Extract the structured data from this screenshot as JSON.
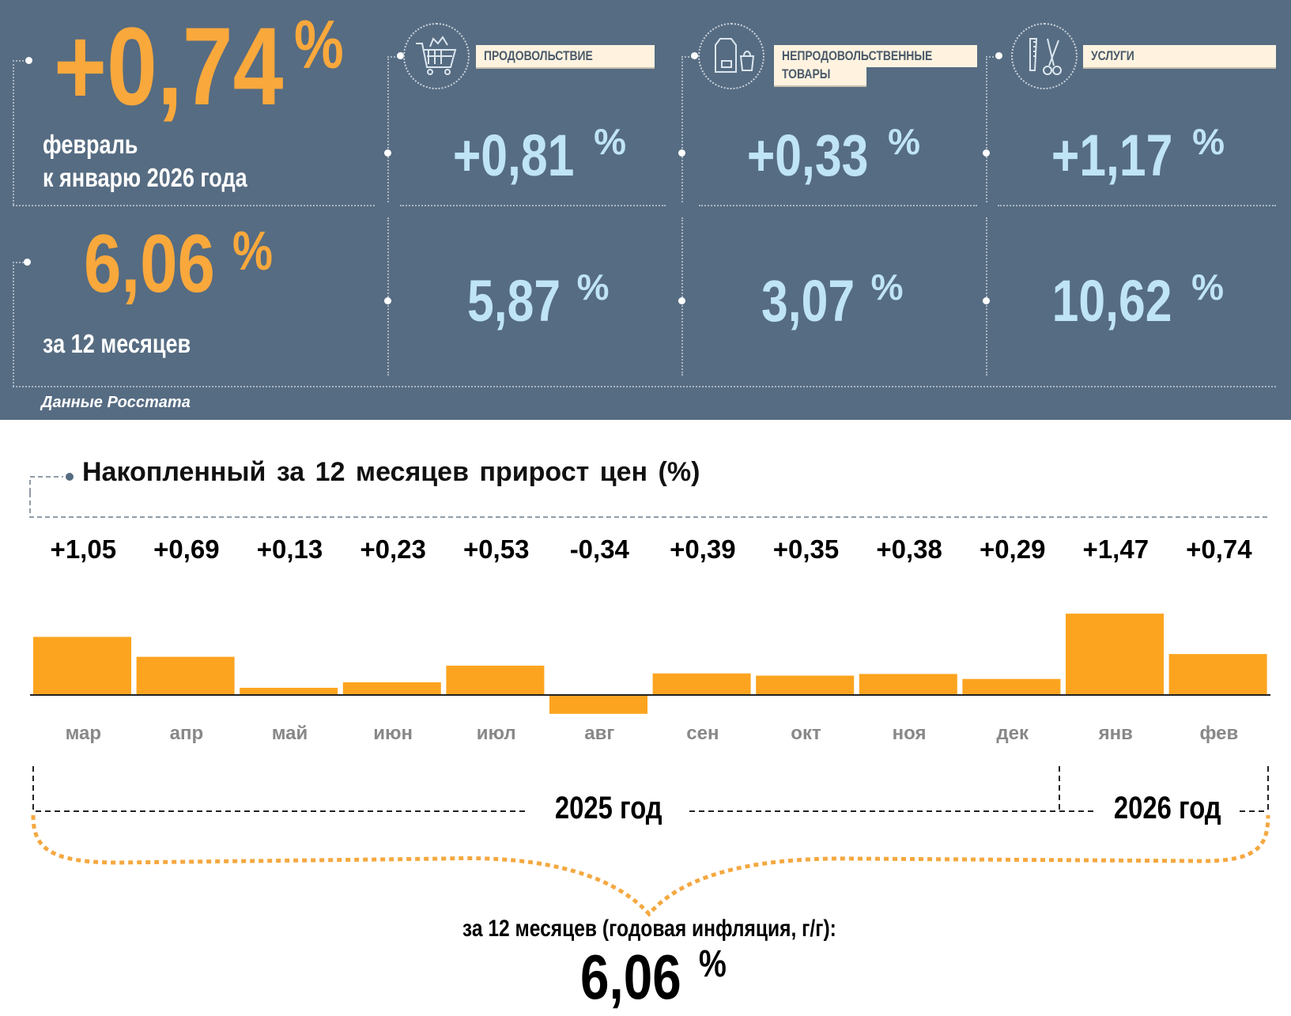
{
  "top": {
    "monthly": {
      "value": "+0,74",
      "pct": "%",
      "line1": "февраль",
      "line2": "к январю 2026 года"
    },
    "annual": {
      "value": "6,06",
      "pct": "%",
      "label": "за 12 месяцев"
    },
    "source": "Данные Росстата",
    "categories": [
      {
        "name": "ПРОДОВОЛЬСТВИЕ",
        "icon": "shopping-cart-icon",
        "monthly": "+0,81",
        "annual": "5,87"
      },
      {
        "name_line1": "НЕПРОДОВОЛЬСТВЕННЫЕ",
        "name_line2": "ТОВАРЫ",
        "icon": "clothes-bag-icon",
        "monthly": "+0,33",
        "annual": "3,07"
      },
      {
        "name": "УСЛУГИ",
        "icon": "comb-scissors-icon",
        "monthly": "+1,17",
        "annual": "10,62"
      }
    ],
    "pct": "%"
  },
  "colors": {
    "panel": "#566c82",
    "accent": "#f9a83c",
    "value_blue": "#bfe4f5",
    "bar": "#fca41f",
    "label_bg": "#fff3e0"
  },
  "chart_data": {
    "type": "bar",
    "title": "Накопленный за 12 месяцев прирост цен (%)",
    "categories": [
      "мар",
      "апр",
      "май",
      "июн",
      "июл",
      "авг",
      "сен",
      "окт",
      "ноя",
      "дек",
      "янв",
      "фев"
    ],
    "values": [
      1.05,
      0.69,
      0.13,
      0.23,
      0.53,
      -0.34,
      0.39,
      0.35,
      0.38,
      0.29,
      1.47,
      0.74
    ],
    "data_labels": [
      "+1,05",
      "+0,69",
      "+0,13",
      "+0,23",
      "+0,53",
      "-0,34",
      "+0,39",
      "+0,35",
      "+0,38",
      "+0,29",
      "+1,47",
      "+0,74"
    ],
    "year_groups": [
      "2025 год",
      "2026 год"
    ],
    "grid": false
  },
  "summary": {
    "label": "за 12 месяцев (годовая инфляция, г/г):",
    "value": "6,06",
    "pct": "%"
  }
}
